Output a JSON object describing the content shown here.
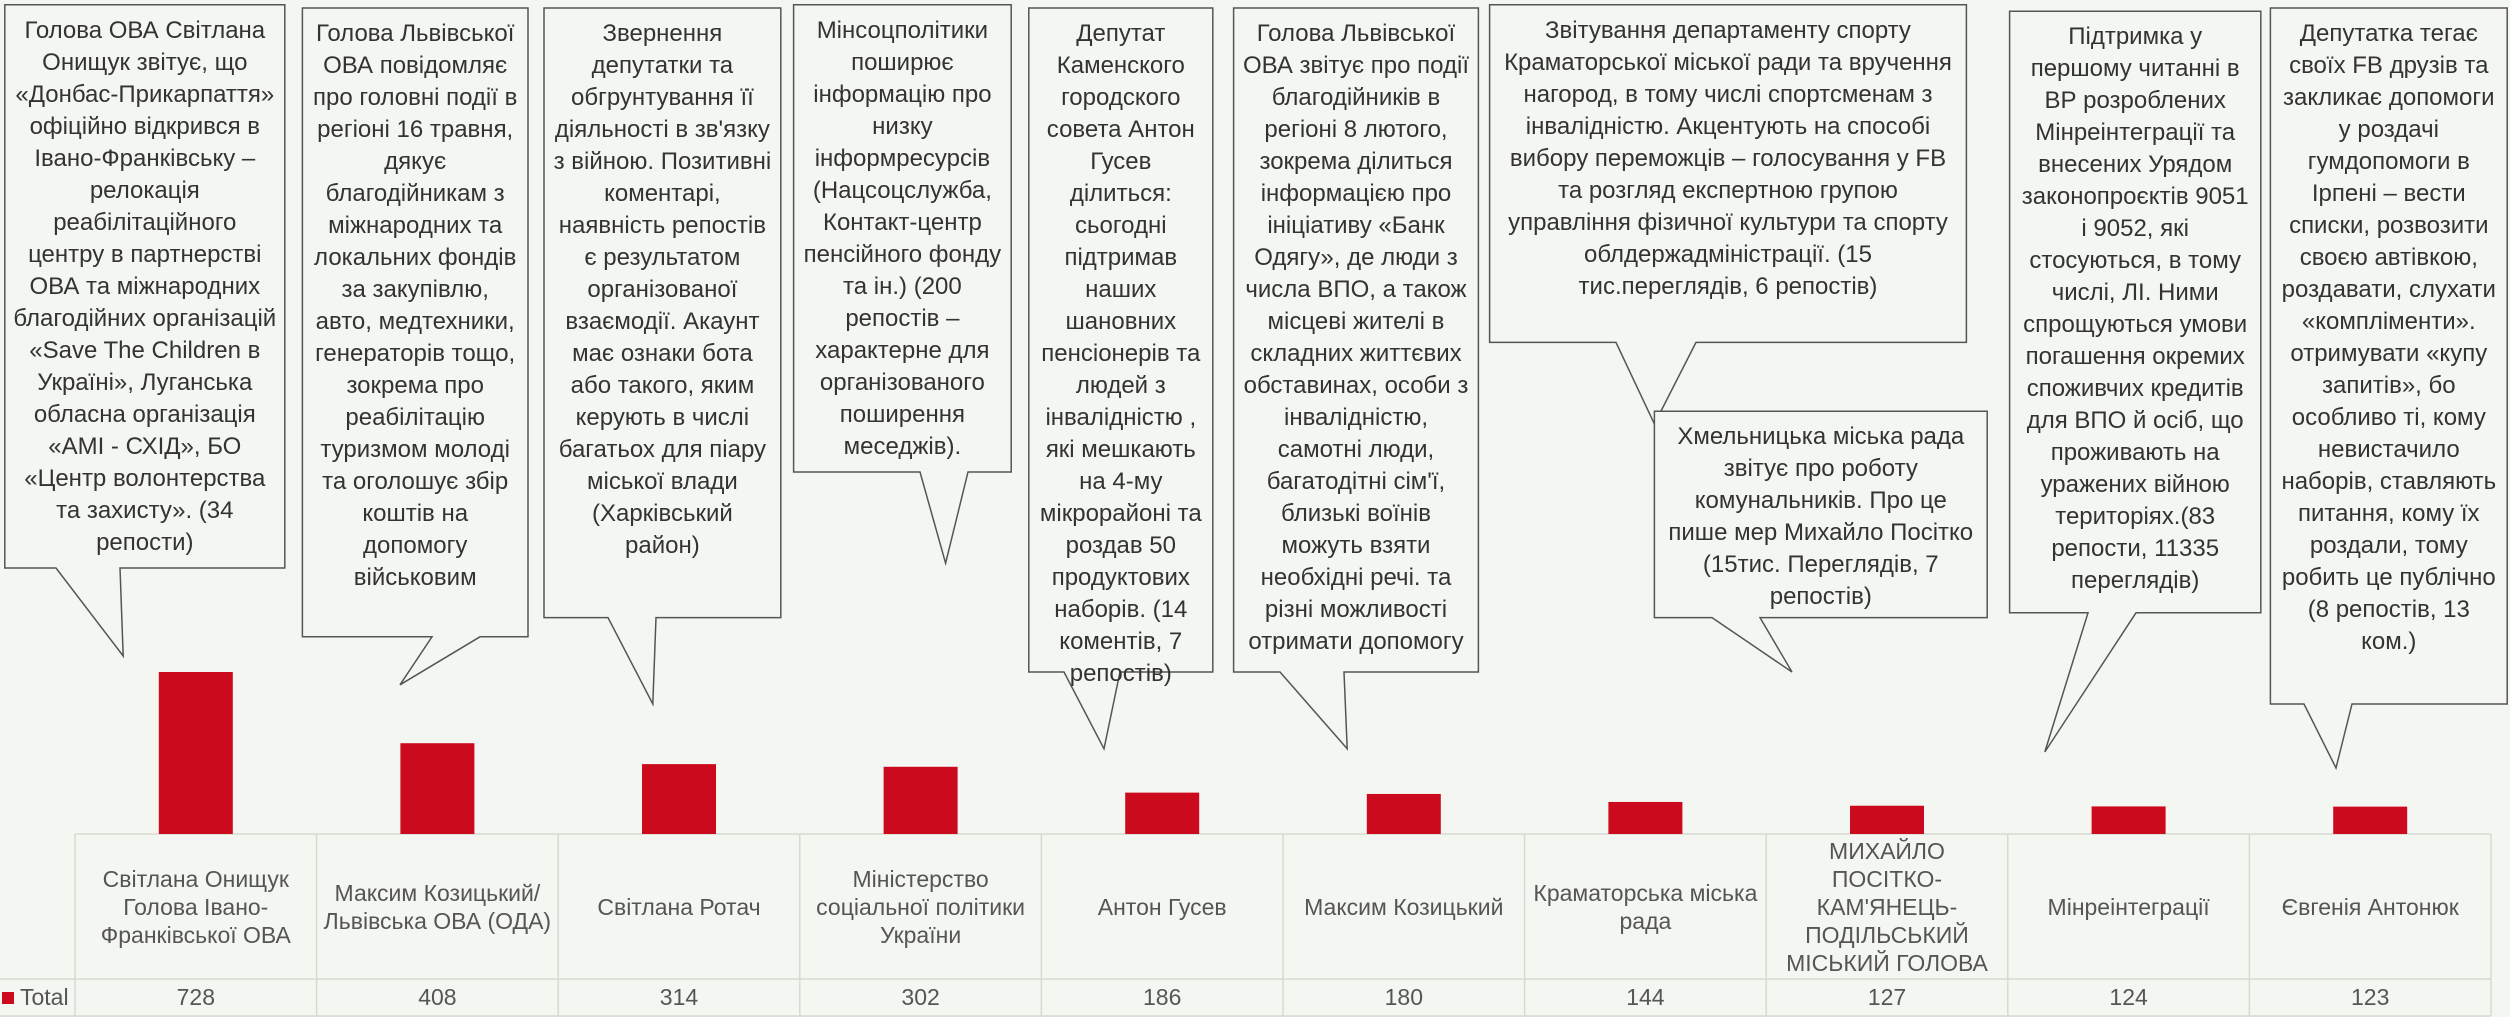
{
  "chart_data": {
    "type": "bar",
    "categories": [
      "Світлана Онищук Голова Івано-Франківської ОВА",
      "Максим Козицький/Львівська ОВА (ОДА)",
      "Світлана Ротач",
      "Міністерство соціальної політики України",
      "Антон Гусев",
      "Максим Козицький",
      "Краматорська міська рада",
      "МИХАЙЛО ПОСІТКО-КАМ'ЯНЕЦЬ-ПОДІЛЬСЬКИЙ МІСЬКИЙ ГОЛОВА",
      "Мінреінтеграції",
      "Євгенія Антонюк"
    ],
    "series": [
      {
        "name": "Total",
        "color": "#cc0a1e",
        "values": [
          728,
          408,
          314,
          302,
          186,
          180,
          144,
          127,
          124,
          123
        ]
      }
    ],
    "annotations": [
      "Голова ОВА Світлана Онищук звітує, що «Донбас-Прикарпаття» офіційно відкрився в Івано-Франківську – релокація реабілітаційного центру в партнерстві ОВА та міжнародних благодійних організацій «Save The Children в Україні», Луганська обласна організація «АМІ - СХІД», БО «Центр волонтерства та захисту». (34 репости)",
      "Голова Львівської ОВА повідомляє про головні події в регіоні 16 травня, дякує благодійникам з міжнародних та локальних фондів за закупівлю, авто, медтехники, генераторів тощо, зокрема про реабілітацію туризмом молоді та оголошує збір коштів на допомогу військовим",
      "Звернення депутатки та обгрунтування її діяльності в зв'язку з війною. Позитивні коментарі, наявність репостів є результатом організованої взаємодії. Акаунт має ознаки бота або такого, яким керують в числі багатьох для піару міської влади (Харківський район)",
      "Мінсоцполітики поширює інформацію про низку інформресурсів (Нацсоцслужба, Контакт-центр пенсійного фонду та ін.) (200 репостів – характерне для організованого поширення меседжів).",
      "Депутат Каменского городского совета Антон Гусев ділиться: сьогодні підтримав наших шановних пенсіонерів та людей з інвалідністю , які мешкають на 4-му мікрорайоні та роздав 50 продуктових наборів. (14 коментів, 7 репостів)",
      "Голова Львівської ОВА  звітує про події благодійників в регіоні 8 лютого, зокрема ділиться інформацією про ініціативу «Банк Одягу», де люди з числа ВПО, а також місцеві жителі в складних життєвих обставинах, особи з інвалідністю, самотні люди, багатодітні сім'ї, близькі воїнів можуть взяти необхідні речі. та різні можливості отримати допомогу",
      "Звітування департаменту спорту Краматорської міської ради та вручення нагород, в тому числі спортсменам з інвалідністю. Акцентують на способі вибору переможців – голосування у FB та розгляд експертною групою управління фізичної культури та спорту облдержадміністрації. (15 тис.переглядів, 6 репостів)",
      "Хмельницька міська рада звітує про роботу комунальників. Про це пише мер Михайло Посітко (15тис. Переглядів, 7 репостів)",
      "Підтримка у першому читанні в ВР розроблених Мінреінтеграції та внесених Урядом законопроєктів 9051 і 9052, які стосуються, в тому числі, ЛІ. Ними спрощуються умови погашення окремих споживчих кредитів для ВПО й осіб, що проживають на уражених війною територіях.(83 репости, 11335 переглядів)",
      "Депутатка тегає своїх FB друзів та закликає допомоги у роздачі гумдопомоги в Ірпені – вести списки, розвозити своєю автівкою, роздавати, слухати «компліменти». отримувати «купу запитів», бо особливо ті, кому невистачило наборів, ставляють питання, кому їх роздали, тому робить це публічно (8 репостів, 13 ком.)"
    ]
  }
}
